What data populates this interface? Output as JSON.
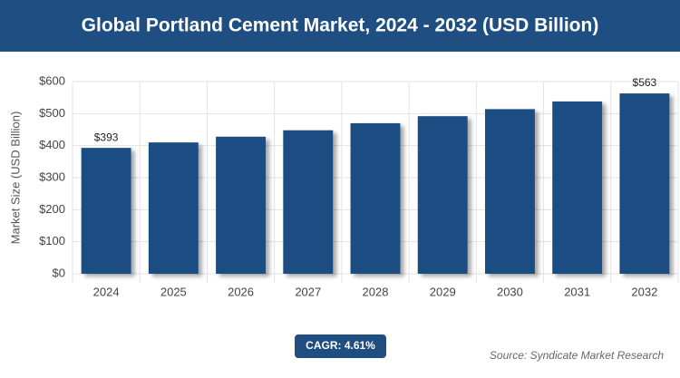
{
  "chart_data": {
    "type": "bar",
    "title": "Global Portland Cement Market, 2024 - 2032 (USD Billion)",
    "y_label": "Market Size (USD Billion)",
    "categories": [
      "2024",
      "2025",
      "2026",
      "2027",
      "2028",
      "2029",
      "2030",
      "2031",
      "2032"
    ],
    "values": [
      393,
      410,
      428,
      448,
      470,
      492,
      514,
      538,
      563
    ],
    "value_labels": [
      "$393",
      null,
      null,
      null,
      null,
      null,
      null,
      null,
      "$563"
    ],
    "color": "#1f4e82",
    "ylim": [
      0,
      600
    ],
    "yticks": [
      {
        "value": 0,
        "label": "$0"
      },
      {
        "value": 100,
        "label": "$100"
      },
      {
        "value": 200,
        "label": "$200"
      },
      {
        "value": 300,
        "label": "$300"
      },
      {
        "value": 400,
        "label": "$400"
      },
      {
        "value": 500,
        "label": "$500"
      },
      {
        "value": 600,
        "label": "$600"
      }
    ],
    "grid": true,
    "cagr_label": "CAGR: 4.61%",
    "source": "Source: Syndicate Market Research"
  }
}
